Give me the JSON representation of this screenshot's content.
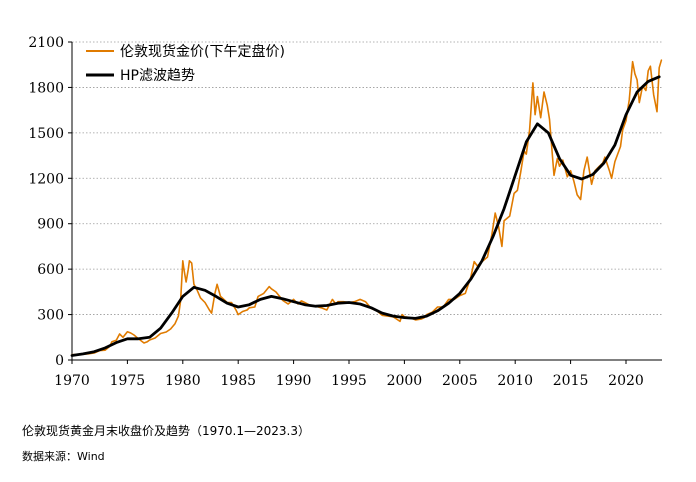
{
  "chart_data": {
    "type": "line",
    "title": "伦敦现货黄金月末收盘价及趋势（1970.1—2023.3）",
    "xlabel": "",
    "ylabel": "",
    "xlim": [
      1970,
      2023.25
    ],
    "ylim": [
      0,
      2100
    ],
    "x_ticks": [
      1970,
      1975,
      1980,
      1985,
      1990,
      1995,
      2000,
      2005,
      2010,
      2015,
      2020
    ],
    "y_ticks": [
      0,
      300,
      600,
      900,
      1200,
      1500,
      1800,
      2100
    ],
    "grid": "horizontal-dotted",
    "legend_position": "top-left",
    "series": [
      {
        "name": "伦敦现货金价(下午定盘价)",
        "color": "#E07B00",
        "points": [
          [
            1970.0,
            35
          ],
          [
            1970.5,
            36
          ],
          [
            1971.0,
            38
          ],
          [
            1971.5,
            41
          ],
          [
            1972.0,
            46
          ],
          [
            1972.5,
            62
          ],
          [
            1973.0,
            65
          ],
          [
            1973.4,
            90
          ],
          [
            1973.6,
            120
          ],
          [
            1974.0,
            130
          ],
          [
            1974.3,
            172
          ],
          [
            1974.6,
            150
          ],
          [
            1975.0,
            186
          ],
          [
            1975.3,
            178
          ],
          [
            1975.6,
            165
          ],
          [
            1976.0,
            140
          ],
          [
            1976.5,
            112
          ],
          [
            1976.8,
            120
          ],
          [
            1977.0,
            132
          ],
          [
            1977.5,
            145
          ],
          [
            1978.0,
            175
          ],
          [
            1978.5,
            185
          ],
          [
            1978.9,
            205
          ],
          [
            1979.3,
            240
          ],
          [
            1979.6,
            290
          ],
          [
            1979.8,
            390
          ],
          [
            1980.0,
            655
          ],
          [
            1980.1,
            600
          ],
          [
            1980.3,
            515
          ],
          [
            1980.5,
            600
          ],
          [
            1980.6,
            655
          ],
          [
            1980.8,
            640
          ],
          [
            1981.0,
            500
          ],
          [
            1981.3,
            460
          ],
          [
            1981.6,
            410
          ],
          [
            1982.0,
            380
          ],
          [
            1982.4,
            330
          ],
          [
            1982.6,
            310
          ],
          [
            1982.9,
            440
          ],
          [
            1983.1,
            500
          ],
          [
            1983.4,
            420
          ],
          [
            1983.7,
            400
          ],
          [
            1984.0,
            380
          ],
          [
            1984.4,
            380
          ],
          [
            1984.8,
            330
          ],
          [
            1985.0,
            300
          ],
          [
            1985.4,
            320
          ],
          [
            1985.8,
            330
          ],
          [
            1986.0,
            345
          ],
          [
            1986.5,
            350
          ],
          [
            1986.8,
            420
          ],
          [
            1987.3,
            440
          ],
          [
            1987.8,
            485
          ],
          [
            1988.0,
            470
          ],
          [
            1988.4,
            450
          ],
          [
            1988.8,
            415
          ],
          [
            1989.0,
            395
          ],
          [
            1989.5,
            370
          ],
          [
            1990.0,
            400
          ],
          [
            1990.4,
            370
          ],
          [
            1990.7,
            390
          ],
          [
            1991.0,
            380
          ],
          [
            1991.5,
            360
          ],
          [
            1992.0,
            355
          ],
          [
            1992.5,
            345
          ],
          [
            1993.0,
            330
          ],
          [
            1993.5,
            400
          ],
          [
            1993.8,
            370
          ],
          [
            1994.0,
            385
          ],
          [
            1994.5,
            385
          ],
          [
            1995.0,
            380
          ],
          [
            1995.5,
            385
          ],
          [
            1996.0,
            400
          ],
          [
            1996.5,
            385
          ],
          [
            1997.0,
            340
          ],
          [
            1997.5,
            325
          ],
          [
            1998.0,
            295
          ],
          [
            1998.5,
            290
          ],
          [
            1999.0,
            285
          ],
          [
            1999.6,
            255
          ],
          [
            1999.8,
            300
          ],
          [
            2000.0,
            285
          ],
          [
            2000.5,
            280
          ],
          [
            2001.0,
            265
          ],
          [
            2001.5,
            270
          ],
          [
            2001.8,
            280
          ],
          [
            2002.0,
            300
          ],
          [
            2002.5,
            315
          ],
          [
            2003.0,
            350
          ],
          [
            2003.5,
            350
          ],
          [
            2004.0,
            400
          ],
          [
            2004.5,
            400
          ],
          [
            2005.0,
            425
          ],
          [
            2005.5,
            440
          ],
          [
            2006.0,
            550
          ],
          [
            2006.3,
            650
          ],
          [
            2006.6,
            620
          ],
          [
            2007.0,
            650
          ],
          [
            2007.5,
            680
          ],
          [
            2007.9,
            830
          ],
          [
            2008.2,
            970
          ],
          [
            2008.5,
            880
          ],
          [
            2008.8,
            750
          ],
          [
            2009.0,
            920
          ],
          [
            2009.5,
            950
          ],
          [
            2009.9,
            1100
          ],
          [
            2010.2,
            1120
          ],
          [
            2010.5,
            1240
          ],
          [
            2010.8,
            1380
          ],
          [
            2011.0,
            1360
          ],
          [
            2011.3,
            1520
          ],
          [
            2011.6,
            1830
          ],
          [
            2011.8,
            1620
          ],
          [
            2012.0,
            1740
          ],
          [
            2012.3,
            1600
          ],
          [
            2012.6,
            1770
          ],
          [
            2012.9,
            1680
          ],
          [
            2013.1,
            1590
          ],
          [
            2013.3,
            1400
          ],
          [
            2013.5,
            1220
          ],
          [
            2013.8,
            1330
          ],
          [
            2014.0,
            1280
          ],
          [
            2014.3,
            1320
          ],
          [
            2014.7,
            1210
          ],
          [
            2015.0,
            1250
          ],
          [
            2015.3,
            1180
          ],
          [
            2015.6,
            1090
          ],
          [
            2015.9,
            1060
          ],
          [
            2016.2,
            1250
          ],
          [
            2016.5,
            1340
          ],
          [
            2016.9,
            1160
          ],
          [
            2017.2,
            1250
          ],
          [
            2017.6,
            1280
          ],
          [
            2017.9,
            1300
          ],
          [
            2018.1,
            1340
          ],
          [
            2018.5,
            1250
          ],
          [
            2018.7,
            1200
          ],
          [
            2019.0,
            1310
          ],
          [
            2019.5,
            1410
          ],
          [
            2019.7,
            1520
          ],
          [
            2020.0,
            1580
          ],
          [
            2020.3,
            1720
          ],
          [
            2020.6,
            1970
          ],
          [
            2020.8,
            1890
          ],
          [
            2021.0,
            1850
          ],
          [
            2021.2,
            1700
          ],
          [
            2021.5,
            1810
          ],
          [
            2021.8,
            1780
          ],
          [
            2022.0,
            1910
          ],
          [
            2022.2,
            1940
          ],
          [
            2022.5,
            1750
          ],
          [
            2022.8,
            1640
          ],
          [
            2023.0,
            1930
          ],
          [
            2023.2,
            1980
          ]
        ]
      },
      {
        "name": "HP滤波趋势",
        "color": "#000000",
        "points": [
          [
            1970,
            30
          ],
          [
            1971,
            40
          ],
          [
            1972,
            55
          ],
          [
            1973,
            80
          ],
          [
            1974,
            115
          ],
          [
            1975,
            140
          ],
          [
            1976,
            140
          ],
          [
            1977,
            150
          ],
          [
            1978,
            210
          ],
          [
            1979,
            310
          ],
          [
            1980,
            420
          ],
          [
            1981,
            480
          ],
          [
            1982,
            460
          ],
          [
            1983,
            420
          ],
          [
            1984,
            375
          ],
          [
            1985,
            350
          ],
          [
            1986,
            365
          ],
          [
            1987,
            400
          ],
          [
            1988,
            420
          ],
          [
            1989,
            405
          ],
          [
            1990,
            385
          ],
          [
            1991,
            365
          ],
          [
            1992,
            355
          ],
          [
            1993,
            360
          ],
          [
            1994,
            375
          ],
          [
            1995,
            380
          ],
          [
            1996,
            370
          ],
          [
            1997,
            345
          ],
          [
            1998,
            310
          ],
          [
            1999,
            290
          ],
          [
            2000,
            280
          ],
          [
            2001,
            275
          ],
          [
            2002,
            290
          ],
          [
            2003,
            325
          ],
          [
            2004,
            375
          ],
          [
            2005,
            440
          ],
          [
            2006,
            535
          ],
          [
            2007,
            655
          ],
          [
            2008,
            815
          ],
          [
            2009,
            1000
          ],
          [
            2010,
            1220
          ],
          [
            2011,
            1440
          ],
          [
            2012,
            1560
          ],
          [
            2013,
            1500
          ],
          [
            2014,
            1330
          ],
          [
            2015,
            1220
          ],
          [
            2016,
            1195
          ],
          [
            2017,
            1225
          ],
          [
            2018,
            1300
          ],
          [
            2019,
            1420
          ],
          [
            2020,
            1620
          ],
          [
            2021,
            1770
          ],
          [
            2022,
            1840
          ],
          [
            2023,
            1870
          ]
        ]
      }
    ]
  },
  "caption": "伦敦现货黄金月末收盘价及趋势（1970.1—2023.3）",
  "source": "数据来源：Wind"
}
